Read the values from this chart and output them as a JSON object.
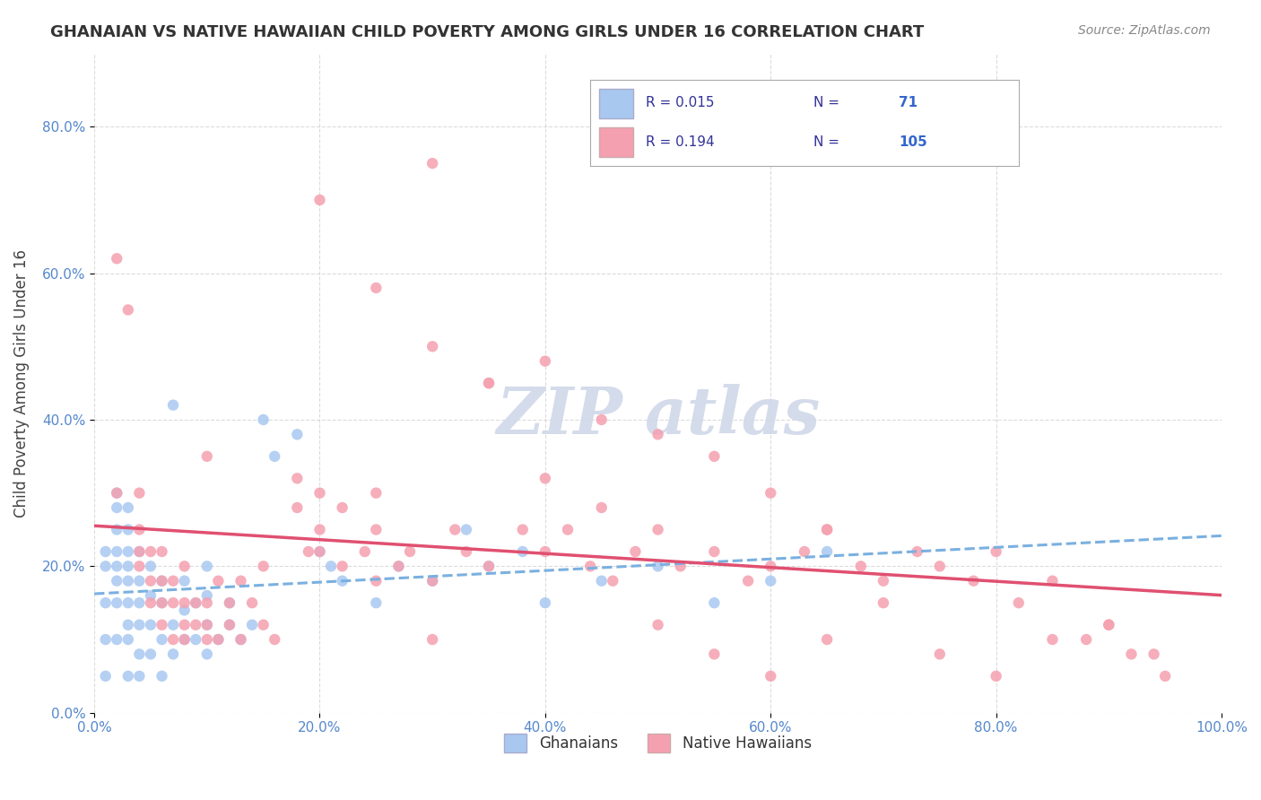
{
  "title": "GHANAIAN VS NATIVE HAWAIIAN CHILD POVERTY AMONG GIRLS UNDER 16 CORRELATION CHART",
  "source": "Source: ZipAtlas.com",
  "ylabel": "Child Poverty Among Girls Under 16",
  "xlabel": "",
  "xlim": [
    0,
    1.0
  ],
  "ylim": [
    0,
    0.9
  ],
  "xticks": [
    0.0,
    0.2,
    0.4,
    0.6,
    0.8,
    1.0
  ],
  "yticks": [
    0.0,
    0.2,
    0.4,
    0.6,
    0.8
  ],
  "xtick_labels": [
    "0.0%",
    "20.0%",
    "40.0%",
    "60.0%",
    "80.0%",
    "100.0%"
  ],
  "ytick_labels": [
    "0.0%",
    "20.0%",
    "40.0%",
    "60.0%",
    "80.0%"
  ],
  "background_color": "#ffffff",
  "plot_bg_color": "#ffffff",
  "grid_color": "#cccccc",
  "blue_scatter_color": "#a8c8f0",
  "pink_scatter_color": "#f5a0b0",
  "blue_line_color": "#7ab0e0",
  "pink_line_color": "#e05070",
  "blue_R": 0.015,
  "blue_N": 71,
  "pink_R": 0.194,
  "pink_N": 105,
  "tick_label_color": "#5588cc",
  "title_color": "#333333",
  "watermark_color": "#d0d8e8",
  "legend_label_blue": "Ghanaians",
  "legend_label_pink": "Native Hawaiians",
  "blue_x": [
    0.01,
    0.01,
    0.01,
    0.01,
    0.01,
    0.02,
    0.02,
    0.02,
    0.02,
    0.02,
    0.02,
    0.02,
    0.02,
    0.03,
    0.03,
    0.03,
    0.03,
    0.03,
    0.03,
    0.03,
    0.03,
    0.03,
    0.04,
    0.04,
    0.04,
    0.04,
    0.04,
    0.04,
    0.05,
    0.05,
    0.05,
    0.05,
    0.06,
    0.06,
    0.06,
    0.06,
    0.07,
    0.07,
    0.07,
    0.08,
    0.08,
    0.08,
    0.09,
    0.09,
    0.1,
    0.1,
    0.1,
    0.1,
    0.11,
    0.12,
    0.12,
    0.13,
    0.14,
    0.15,
    0.16,
    0.18,
    0.2,
    0.21,
    0.22,
    0.25,
    0.27,
    0.3,
    0.33,
    0.35,
    0.38,
    0.4,
    0.45,
    0.5,
    0.55,
    0.6,
    0.65
  ],
  "blue_y": [
    0.05,
    0.1,
    0.15,
    0.2,
    0.22,
    0.1,
    0.15,
    0.18,
    0.2,
    0.22,
    0.25,
    0.28,
    0.3,
    0.05,
    0.1,
    0.12,
    0.15,
    0.18,
    0.2,
    0.22,
    0.25,
    0.28,
    0.05,
    0.08,
    0.12,
    0.15,
    0.18,
    0.22,
    0.08,
    0.12,
    0.16,
    0.2,
    0.05,
    0.1,
    0.15,
    0.18,
    0.08,
    0.12,
    0.42,
    0.1,
    0.14,
    0.18,
    0.1,
    0.15,
    0.08,
    0.12,
    0.16,
    0.2,
    0.1,
    0.12,
    0.15,
    0.1,
    0.12,
    0.4,
    0.35,
    0.38,
    0.22,
    0.2,
    0.18,
    0.15,
    0.2,
    0.18,
    0.25,
    0.2,
    0.22,
    0.15,
    0.18,
    0.2,
    0.15,
    0.18,
    0.22
  ],
  "pink_x": [
    0.02,
    0.02,
    0.03,
    0.04,
    0.04,
    0.04,
    0.04,
    0.05,
    0.05,
    0.05,
    0.06,
    0.06,
    0.06,
    0.06,
    0.07,
    0.07,
    0.07,
    0.08,
    0.08,
    0.08,
    0.08,
    0.09,
    0.09,
    0.1,
    0.1,
    0.1,
    0.1,
    0.11,
    0.11,
    0.12,
    0.12,
    0.13,
    0.13,
    0.14,
    0.15,
    0.15,
    0.16,
    0.18,
    0.18,
    0.19,
    0.2,
    0.2,
    0.22,
    0.22,
    0.24,
    0.25,
    0.25,
    0.27,
    0.28,
    0.3,
    0.32,
    0.33,
    0.35,
    0.38,
    0.4,
    0.42,
    0.44,
    0.46,
    0.48,
    0.5,
    0.52,
    0.55,
    0.58,
    0.6,
    0.63,
    0.65,
    0.68,
    0.7,
    0.73,
    0.75,
    0.78,
    0.8,
    0.82,
    0.85,
    0.88,
    0.9,
    0.92,
    0.95,
    0.2,
    0.25,
    0.3,
    0.35,
    0.4,
    0.45,
    0.5,
    0.55,
    0.6,
    0.65,
    0.3,
    0.35,
    0.4,
    0.45,
    0.5,
    0.55,
    0.6,
    0.65,
    0.7,
    0.75,
    0.8,
    0.85,
    0.9,
    0.94,
    0.2,
    0.25,
    0.3
  ],
  "pink_y": [
    0.62,
    0.3,
    0.55,
    0.2,
    0.22,
    0.25,
    0.3,
    0.15,
    0.18,
    0.22,
    0.12,
    0.15,
    0.18,
    0.22,
    0.1,
    0.15,
    0.18,
    0.1,
    0.12,
    0.15,
    0.2,
    0.12,
    0.15,
    0.1,
    0.12,
    0.15,
    0.35,
    0.1,
    0.18,
    0.12,
    0.15,
    0.1,
    0.18,
    0.15,
    0.12,
    0.2,
    0.1,
    0.28,
    0.32,
    0.22,
    0.25,
    0.3,
    0.2,
    0.28,
    0.22,
    0.25,
    0.3,
    0.2,
    0.22,
    0.18,
    0.25,
    0.22,
    0.2,
    0.25,
    0.22,
    0.25,
    0.2,
    0.18,
    0.22,
    0.25,
    0.2,
    0.22,
    0.18,
    0.2,
    0.22,
    0.25,
    0.2,
    0.18,
    0.22,
    0.2,
    0.18,
    0.22,
    0.15,
    0.18,
    0.1,
    0.12,
    0.08,
    0.05,
    0.7,
    0.58,
    0.5,
    0.45,
    0.48,
    0.4,
    0.38,
    0.35,
    0.3,
    0.25,
    0.75,
    0.45,
    0.32,
    0.28,
    0.12,
    0.08,
    0.05,
    0.1,
    0.15,
    0.08,
    0.05,
    0.1,
    0.12,
    0.08,
    0.22,
    0.18,
    0.1
  ]
}
